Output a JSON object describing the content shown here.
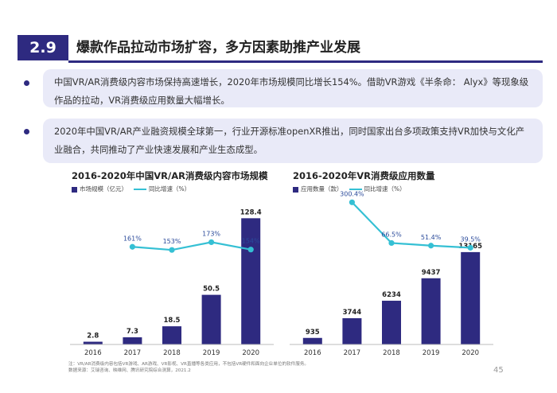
{
  "header": {
    "section_number": "2.9",
    "title": "爆款作品拉动市场扩容，多方因素助推产业发展"
  },
  "bullets": [
    "中国VR/AR消费级内容市场保持高速增长，2020年市场规模同比增长154%。借助VR游戏《半条命： Alyx》等现象级作品的拉动，VR消费级应用数量大幅增长。",
    "2020年中国VR/AR产业融资规模全球第一，行业开源标准openXR推出，同时国家出台多项政策支持VR加快与文化产业融合，共同推动了产业快速发展和产业生态成型。"
  ],
  "chart_data": [
    {
      "type": "bar",
      "title": "2016-2020年中国VR/AR消费级内容市场规模",
      "categories": [
        "2016",
        "2017",
        "2018",
        "2019",
        "2020"
      ],
      "series": [
        {
          "name": "市场规模（亿元）",
          "type": "bar",
          "values": [
            2.8,
            7.3,
            18.5,
            50.5,
            128.4
          ],
          "labels": [
            "2.8",
            "7.3",
            "18.5",
            "50.5",
            "128.4"
          ]
        },
        {
          "name": "同比增速（%）",
          "type": "line",
          "values": [
            null,
            161,
            153,
            173,
            154
          ],
          "labels": [
            "",
            "161%",
            "153%",
            "173%",
            "154%"
          ]
        }
      ],
      "ylim": [
        0,
        140
      ],
      "growth_range": [
        100,
        260
      ],
      "bar_color": "#2e2a80",
      "line_color": "#35c0d4",
      "grid": false
    },
    {
      "type": "bar",
      "title": "2016-2020年VR消费级应用数量",
      "categories": [
        "2016",
        "2017",
        "2018",
        "2019",
        "2020"
      ],
      "series": [
        {
          "name": "应用数量（款）",
          "type": "bar",
          "values": [
            935,
            3744,
            6234,
            9437,
            13165
          ],
          "labels": [
            "935",
            "3744",
            "6234",
            "9437",
            "13165"
          ]
        },
        {
          "name": "同比增速（%）",
          "type": "line",
          "values": [
            null,
            300.4,
            66.5,
            51.4,
            39.5
          ],
          "labels": [
            "",
            "300.4%",
            "66.5%",
            "51.4%",
            "39.5%"
          ]
        }
      ],
      "ylim": [
        0,
        14400
      ],
      "growth_range": [
        0,
        320
      ],
      "bar_color": "#2e2a80",
      "line_color": "#35c0d4",
      "grid": false
    }
  ],
  "notes": {
    "note1": "注：VR/AR消费级内容包括VR游戏、AR游戏、VR影视、VR直播等各类应用，不包括VR硬件和面向企业单位的软件服务。",
    "note2": "数据来源：艾瑞咨询、映维网、腾讯研究院综合测算，2021.2"
  },
  "page_number": "45"
}
